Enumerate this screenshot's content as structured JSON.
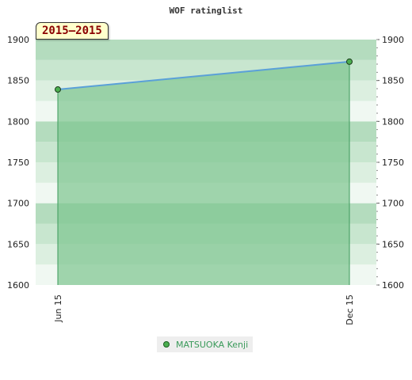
{
  "chart_data": {
    "type": "area",
    "title": "WOF ratinglist",
    "period_label": "2015–2015",
    "categories": [
      "Jun 15",
      "Dec 15"
    ],
    "series": [
      {
        "name": "MATSUOKA Kenji",
        "values": [
          1839,
          1873
        ]
      }
    ],
    "ylim": [
      1600,
      1900
    ],
    "y_ticks": [
      "1600",
      "1650",
      "1700",
      "1750",
      "1800",
      "1850",
      "1900"
    ],
    "grid": true,
    "legend": "bottom-center",
    "colors": {
      "line": "#5aa0d8",
      "fill": "#7cc48e",
      "marker": "#4caf50",
      "band_dark": "#b4dcbe",
      "band_light": "#f0f8f2"
    }
  }
}
